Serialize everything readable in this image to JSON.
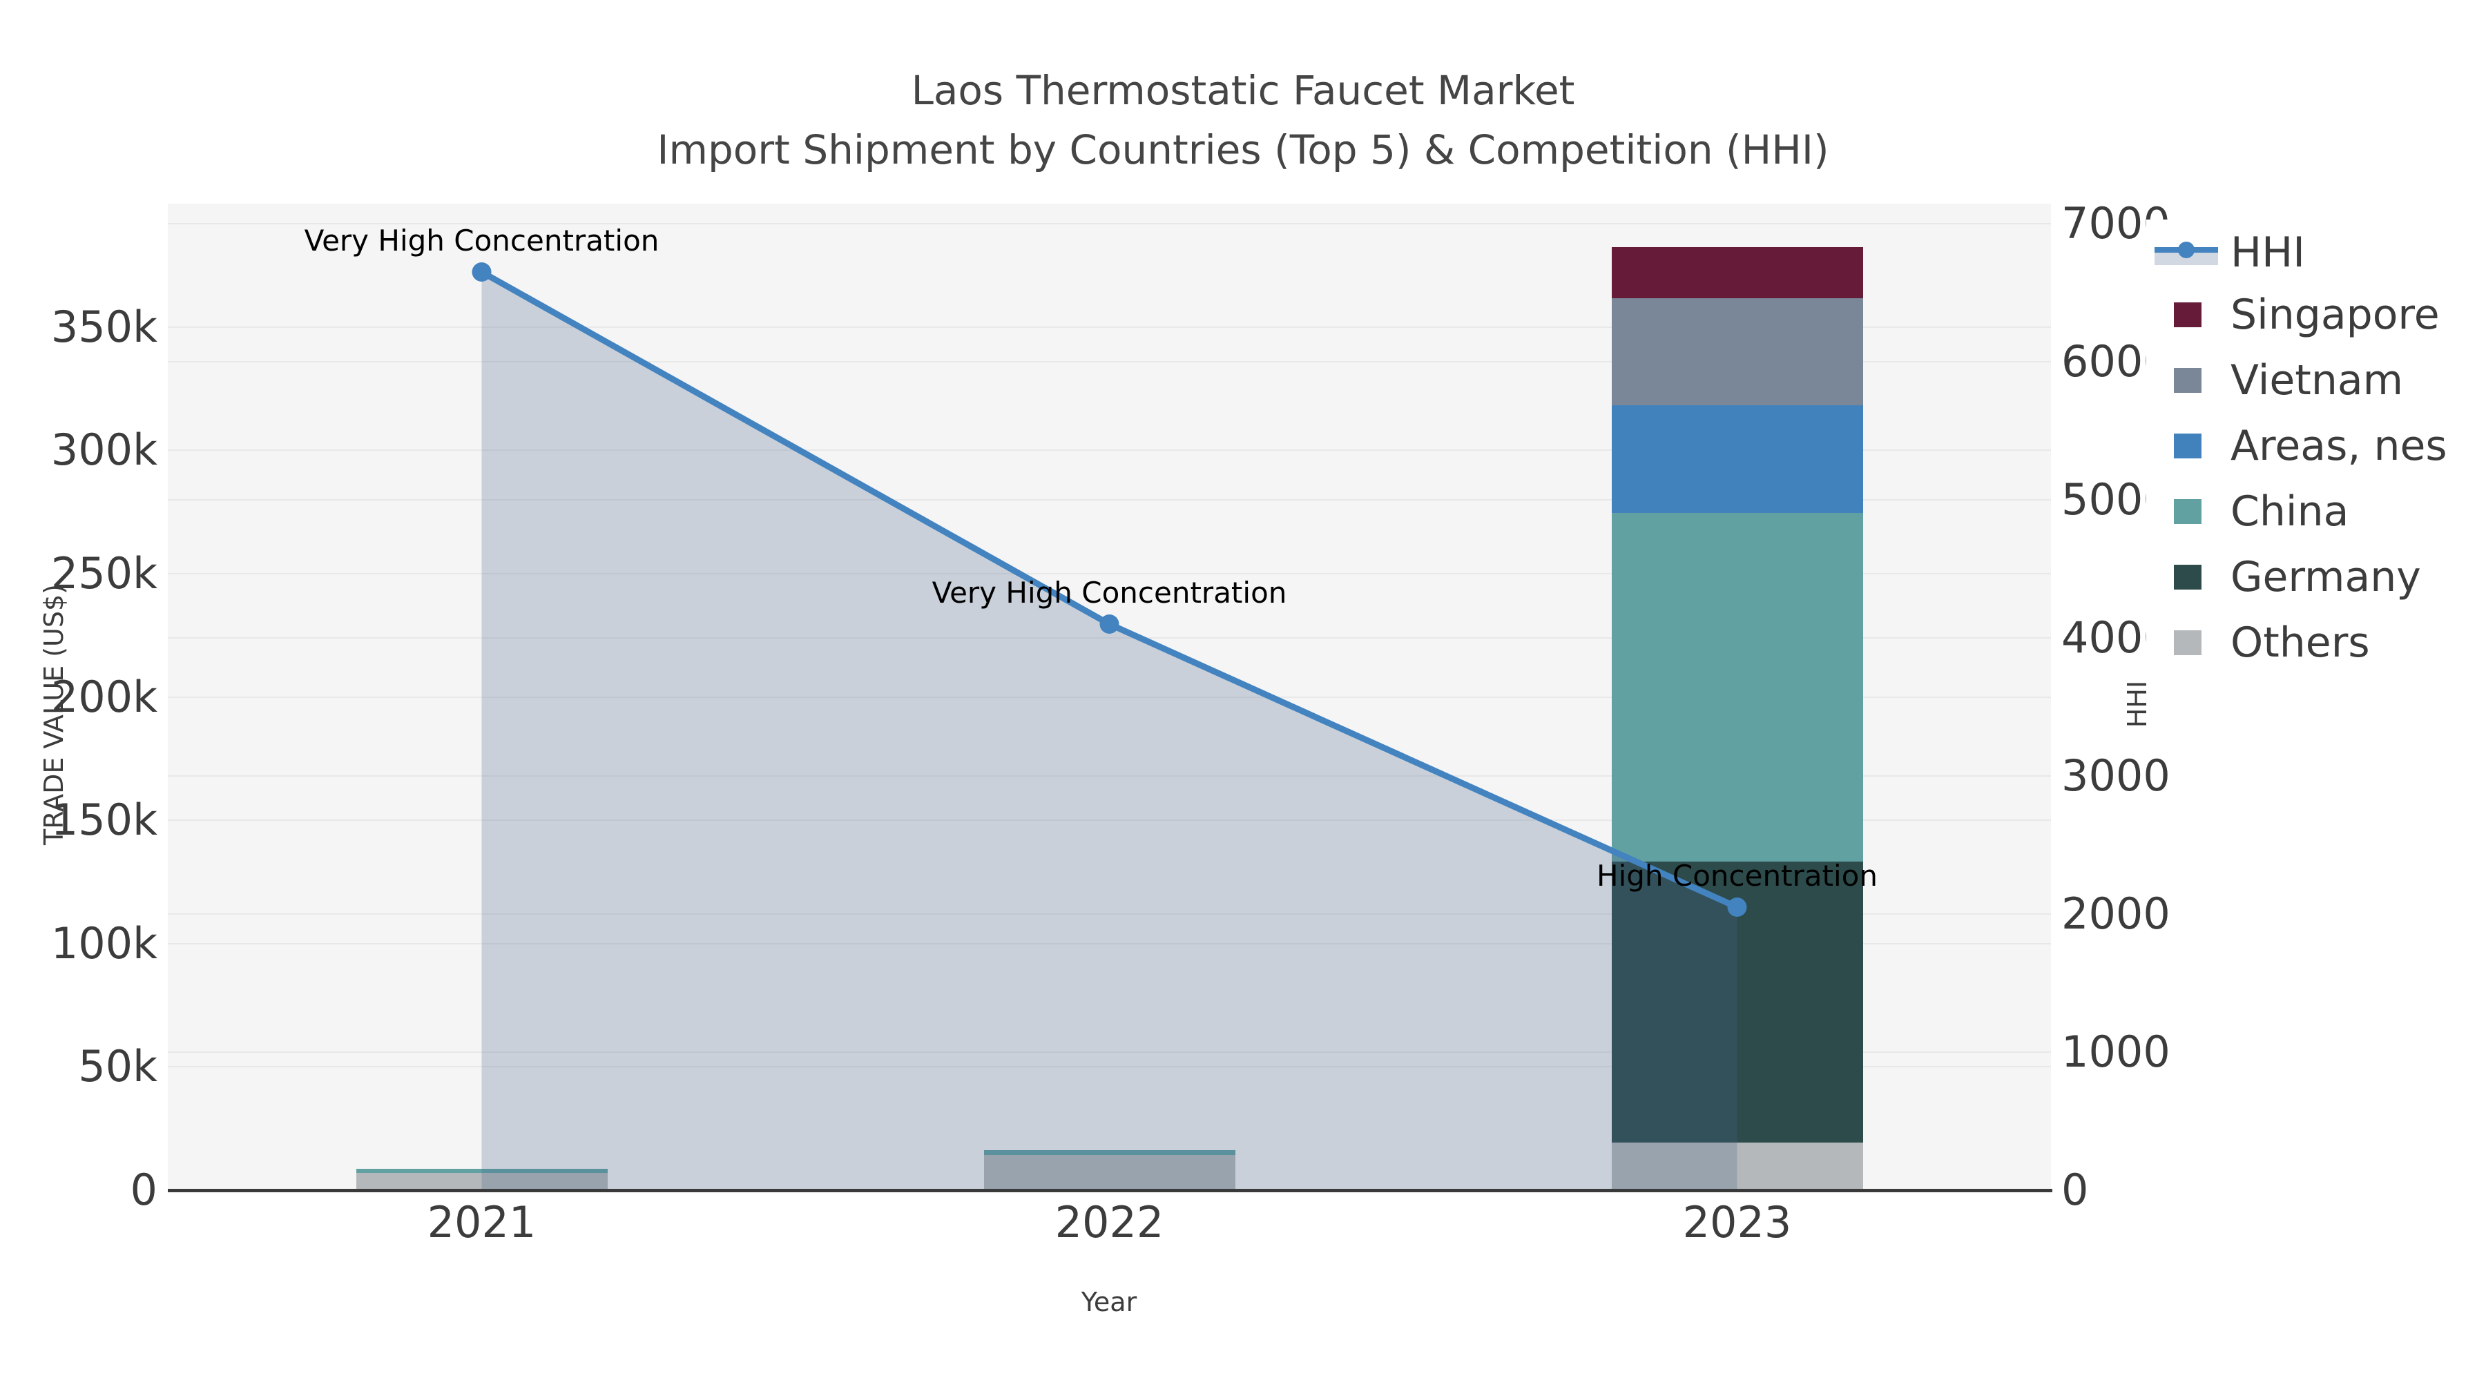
{
  "title": {
    "line1": "Laos Thermostatic Faucet Market",
    "line2": "Import Shipment by Countries (Top 5) & Competition (HHI)"
  },
  "axes": {
    "x": {
      "label": "Year",
      "categories": [
        "2021",
        "2022",
        "2023"
      ]
    },
    "y_left": {
      "label": "TRADE VALUE (US$)",
      "tick_labels": [
        "0",
        "50k",
        "100k",
        "150k",
        "200k",
        "250k",
        "300k",
        "350k"
      ],
      "tick_values": [
        0,
        50000,
        100000,
        150000,
        200000,
        250000,
        300000,
        350000
      ],
      "max": 400000
    },
    "y_right": {
      "label": "HHI",
      "tick_labels": [
        "0",
        "1000",
        "2000",
        "3000",
        "4000",
        "5000",
        "6000",
        "7000"
      ],
      "tick_values": [
        0,
        1000,
        2000,
        3000,
        4000,
        5000,
        6000,
        7000
      ],
      "max": 7145
    }
  },
  "chart_data": {
    "type": "bar",
    "subtype": "stacked-bar-with-line-area-combo",
    "title": "Laos Thermostatic Faucet Market — Import Shipment by Countries (Top 5) & Competition (HHI)",
    "xlabel": "Year",
    "ylabel_left": "TRADE VALUE (US$)",
    "ylabel_right": "HHI",
    "ylim_left": [
      0,
      400000
    ],
    "ylim_right": [
      0,
      7145
    ],
    "grid": true,
    "legend_position": "right",
    "categories": [
      "2021",
      "2022",
      "2023"
    ],
    "stack_order_bottom_to_top": [
      "Others",
      "Germany",
      "China",
      "Areas, nes",
      "Vietnam",
      "Singapore"
    ],
    "series": [
      {
        "name": "Singapore",
        "color": "#661c39",
        "values": [
          0,
          0,
          20700
        ]
      },
      {
        "name": "Vietnam",
        "color": "#7a8799",
        "values": [
          0,
          0,
          43400
        ]
      },
      {
        "name": "Areas, nes",
        "color": "#4182bd",
        "values": [
          0,
          0,
          43700
        ]
      },
      {
        "name": "China",
        "color": "#62a1a2",
        "values": [
          1800,
          2000,
          141300
        ]
      },
      {
        "name": "Germany",
        "color": "#2d4b4b",
        "values": [
          0,
          0,
          113900
        ]
      },
      {
        "name": "Others",
        "color": "#b5b8ba",
        "values": [
          7000,
          14300,
          19300
        ]
      }
    ],
    "line_series": {
      "name": "HHI",
      "axis": "right",
      "color": "#4383bf",
      "area_fill": "rgba(70,100,140,0.25)",
      "values": [
        6650,
        4100,
        2050
      ]
    },
    "annotations": [
      {
        "category": "2021",
        "text": "Very High Concentration"
      },
      {
        "category": "2022",
        "text": "Very High Concentration"
      },
      {
        "category": "2023",
        "text": "High Concentration"
      }
    ]
  },
  "legend": {
    "items": [
      {
        "label": "HHI",
        "type": "line"
      },
      {
        "label": "Singapore",
        "type": "patch",
        "color": "#661c39"
      },
      {
        "label": "Vietnam",
        "type": "patch",
        "color": "#7a8799"
      },
      {
        "label": "Areas, nes",
        "type": "patch",
        "color": "#4182bd"
      },
      {
        "label": "China",
        "type": "patch",
        "color": "#62a1a2"
      },
      {
        "label": "Germany",
        "type": "patch",
        "color": "#2d4b4b"
      },
      {
        "label": "Others",
        "type": "patch",
        "color": "#b5b8ba"
      }
    ]
  },
  "colors": {
    "hhi_line": "#4383bf",
    "area_fill": "rgba(70,100,140,0.25)",
    "plot_background": "#f5f5f5",
    "gridline": "#e8e8e8",
    "axis_line": "#3a3a3a",
    "text": "#3c3c3c",
    "annotation_text": "#000000"
  }
}
